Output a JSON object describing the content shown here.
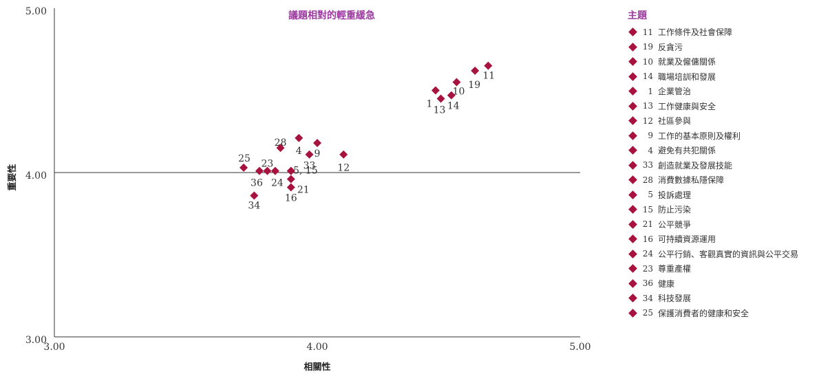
{
  "colors": {
    "accent": "#9b3a9e",
    "marker": "#a8123e",
    "axis": "#333333"
  },
  "chart_data": {
    "type": "scatter",
    "title": "議題相對的輕重緩急",
    "xlabel": "相關性",
    "ylabel": "重要性",
    "xlim": [
      3.0,
      5.0
    ],
    "ylim": [
      3.0,
      5.0
    ],
    "x_ticks": [
      "3.00",
      "4.00",
      "5.00"
    ],
    "y_ticks": [
      "3.00",
      "4.00",
      "5.00"
    ],
    "grid": false,
    "legend_position": "right",
    "legend_title": "主題",
    "points": [
      {
        "id": "11",
        "name": "工作條件及社會保障",
        "x": 4.65,
        "y": 4.65,
        "label": "11"
      },
      {
        "id": "19",
        "name": "反貪污",
        "x": 4.6,
        "y": 4.62,
        "label": "19"
      },
      {
        "id": "10",
        "name": "就業及僱傭關係",
        "x": 4.53,
        "y": 4.55,
        "label": "10"
      },
      {
        "id": "14",
        "name": "職場培訓和發展",
        "x": 4.51,
        "y": 4.47,
        "label": "14"
      },
      {
        "id": "1",
        "name": "企業管治",
        "x": 4.45,
        "y": 4.5,
        "label": "1"
      },
      {
        "id": "13",
        "name": "工作健康與安全",
        "x": 4.47,
        "y": 4.45,
        "label": "13"
      },
      {
        "id": "12",
        "name": "社區參與",
        "x": 4.1,
        "y": 4.11,
        "label": "12"
      },
      {
        "id": "9",
        "name": "工作的基本原則及權利",
        "x": 4.0,
        "y": 4.18,
        "label": "9"
      },
      {
        "id": "4",
        "name": "避免有共犯關係",
        "x": 3.93,
        "y": 4.21,
        "label": "4"
      },
      {
        "id": "33",
        "name": "創造就業及發展技能",
        "x": 3.97,
        "y": 4.11,
        "label": "33"
      },
      {
        "id": "28",
        "name": "消費數據私隱保障",
        "x": 3.86,
        "y": 4.15,
        "label": "28"
      },
      {
        "id": "5",
        "name": "投訴處理",
        "x": 3.9,
        "y": 4.01,
        "label": "5, 15"
      },
      {
        "id": "15",
        "name": "防止污染",
        "x": 3.9,
        "y": 4.01,
        "label": ""
      },
      {
        "id": "21",
        "name": "公平競爭",
        "x": 3.9,
        "y": 3.96,
        "label": "21"
      },
      {
        "id": "16",
        "name": "可持續資源運用",
        "x": 3.9,
        "y": 3.91,
        "label": "16"
      },
      {
        "id": "24",
        "name": "公平行銷、客觀真實的資訊與公平交易",
        "x": 3.84,
        "y": 4.01,
        "label": "24"
      },
      {
        "id": "23",
        "name": "尊重產權",
        "x": 3.81,
        "y": 4.01,
        "label": "23"
      },
      {
        "id": "36",
        "name": "健康",
        "x": 3.78,
        "y": 4.01,
        "label": "36"
      },
      {
        "id": "34",
        "name": "科技發展",
        "x": 3.76,
        "y": 3.86,
        "label": "34"
      },
      {
        "id": "25",
        "name": "保護消費者的健康和安全",
        "x": 3.72,
        "y": 4.03,
        "label": "25"
      }
    ]
  },
  "legend": {
    "title": "主題",
    "items": [
      {
        "id": "11",
        "label": "工作條件及社會保障"
      },
      {
        "id": "19",
        "label": "反貪污"
      },
      {
        "id": "10",
        "label": "就業及僱傭關係"
      },
      {
        "id": "14",
        "label": "職場培訓和發展"
      },
      {
        "id": "1",
        "label": "企業管治"
      },
      {
        "id": "13",
        "label": "工作健康與安全"
      },
      {
        "id": "12",
        "label": "社區參與"
      },
      {
        "id": "9",
        "label": "工作的基本原則及權利"
      },
      {
        "id": "4",
        "label": "避免有共犯關係"
      },
      {
        "id": "33",
        "label": "創造就業及發展技能"
      },
      {
        "id": "28",
        "label": "消費數據私隱保障"
      },
      {
        "id": "5",
        "label": "投訴處理"
      },
      {
        "id": "15",
        "label": "防止污染"
      },
      {
        "id": "21",
        "label": "公平競爭"
      },
      {
        "id": "16",
        "label": "可持續資源運用"
      },
      {
        "id": "24",
        "label": "公平行銷、客觀真實的資訊與公平交易"
      },
      {
        "id": "23",
        "label": "尊重產權"
      },
      {
        "id": "36",
        "label": "健康"
      },
      {
        "id": "34",
        "label": "科技發展"
      },
      {
        "id": "25",
        "label": "保護消費者的健康和安全"
      }
    ]
  }
}
